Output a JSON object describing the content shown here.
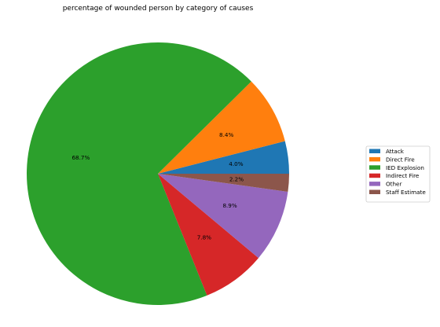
{
  "chart_data": {
    "type": "pie",
    "title": "percentage of wounded person by category of causes",
    "legend_position": "right",
    "slices": [
      {
        "label": "Attack",
        "value": 4.0,
        "pct_label": "4.0%",
        "color": "#1f77b4"
      },
      {
        "label": "Direct Fire",
        "value": 8.4,
        "pct_label": "8.4%",
        "color": "#ff7f0e"
      },
      {
        "label": "IED Explosion",
        "value": 68.7,
        "pct_label": "68.7%",
        "color": "#2ca02c"
      },
      {
        "label": "Indirect Fire",
        "value": 7.8,
        "pct_label": "7.8%",
        "color": "#d62728"
      },
      {
        "label": "Other",
        "value": 8.9,
        "pct_label": "8.9%",
        "color": "#9467bd"
      },
      {
        "label": "Staff Estimate",
        "value": 2.2,
        "pct_label": "2.2%",
        "color": "#8c564b"
      }
    ]
  }
}
